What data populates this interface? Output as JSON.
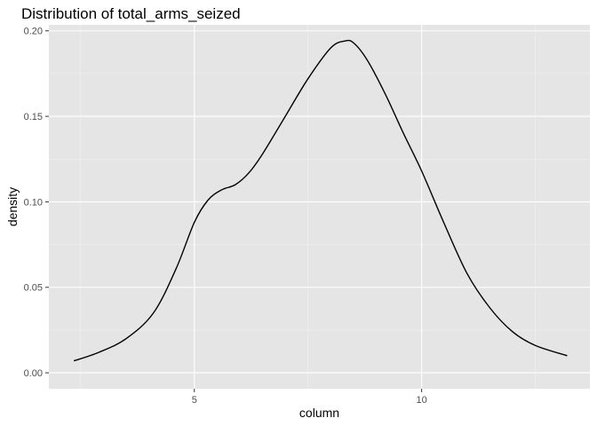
{
  "chart_data": {
    "type": "line",
    "title": "Distribution of total_arms_seized",
    "xlabel": "column",
    "ylabel": "density",
    "xlim": [
      1.8,
      13.7
    ],
    "ylim": [
      -0.0093,
      0.2035
    ],
    "x_ticks": [
      5,
      10
    ],
    "x_tick_labels": [
      "5",
      "10"
    ],
    "y_ticks": [
      0,
      0.05,
      0.1,
      0.15,
      0.2
    ],
    "y_tick_labels": [
      "0.00",
      "0.05",
      "0.10",
      "0.15",
      "0.20"
    ],
    "grid": true,
    "series": [
      {
        "x": [
          2.35,
          2.9,
          3.5,
          4.1,
          4.6,
          5.0,
          5.3,
          5.6,
          5.9,
          6.2,
          6.5,
          7.0,
          7.5,
          8.0,
          8.3,
          8.5,
          8.8,
          9.2,
          9.6,
          10.0,
          10.5,
          11.0,
          11.5,
          12.0,
          12.5,
          13.2
        ],
        "y": [
          0.007,
          0.012,
          0.02,
          0.035,
          0.061,
          0.088,
          0.101,
          0.107,
          0.11,
          0.117,
          0.128,
          0.15,
          0.172,
          0.19,
          0.194,
          0.193,
          0.183,
          0.163,
          0.14,
          0.118,
          0.087,
          0.058,
          0.038,
          0.024,
          0.016,
          0.01
        ]
      }
    ]
  },
  "colors": {
    "panel_background": "#e5e5e5",
    "grid_major": "#ffffff",
    "grid_minor": "#f2f2f2",
    "line": "#000000",
    "tick_text": "#4d4d4d"
  }
}
